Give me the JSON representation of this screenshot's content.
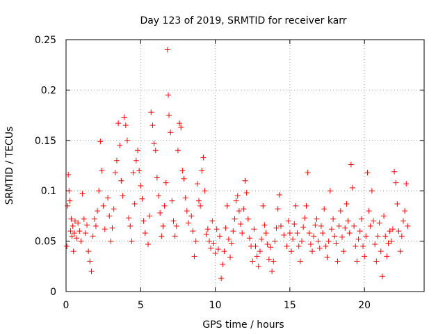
{
  "chart_data": {
    "type": "scatter",
    "title": "Day 123 of 2019, SRMTID for receiver karr",
    "xlabel": "GPS time / hours",
    "ylabel": "SRMTID / TECUs",
    "xlim": [
      0,
      24
    ],
    "ylim": [
      0,
      0.25
    ],
    "xticks": [
      0,
      5,
      10,
      15,
      20
    ],
    "xtick_labels": [
      "0",
      "5",
      "10",
      "15",
      "20"
    ],
    "yticks": [
      0,
      0.05,
      0.1,
      0.15,
      0.2,
      0.25
    ],
    "ytick_labels": [
      "0",
      "0.05",
      "0.1",
      "0.15",
      "0.2",
      "0.25"
    ],
    "grid": true,
    "marker": "plus",
    "marker_color": "#ff0000",
    "series": [
      {
        "name": "SRMTID",
        "points": [
          [
            0.05,
            0.045
          ],
          [
            0.1,
            0.085
          ],
          [
            0.15,
            0.116
          ],
          [
            0.2,
            0.1
          ],
          [
            0.25,
            0.09
          ],
          [
            0.3,
            0.06
          ],
          [
            0.35,
            0.072
          ],
          [
            0.4,
            0.055
          ],
          [
            0.45,
            0.065
          ],
          [
            0.5,
            0.04
          ],
          [
            0.55,
            0.058
          ],
          [
            0.6,
            0.07
          ],
          [
            0.7,
            0.053
          ],
          [
            0.8,
            0.068
          ],
          [
            0.9,
            0.06
          ],
          [
            1.0,
            0.05
          ],
          [
            1.1,
            0.097
          ],
          [
            1.2,
            0.072
          ],
          [
            1.3,
            0.058
          ],
          [
            1.4,
            0.066
          ],
          [
            1.5,
            0.04
          ],
          [
            1.6,
            0.03
          ],
          [
            1.7,
            0.02
          ],
          [
            1.8,
            0.055
          ],
          [
            1.9,
            0.072
          ],
          [
            2.0,
            0.065
          ],
          [
            2.1,
            0.08
          ],
          [
            2.2,
            0.1
          ],
          [
            2.3,
            0.149
          ],
          [
            2.4,
            0.12
          ],
          [
            2.5,
            0.085
          ],
          [
            2.6,
            0.062
          ],
          [
            2.8,
            0.093
          ],
          [
            2.9,
            0.075
          ],
          [
            3.0,
            0.05
          ],
          [
            3.1,
            0.063
          ],
          [
            3.2,
            0.082
          ],
          [
            3.3,
            0.118
          ],
          [
            3.4,
            0.13
          ],
          [
            3.5,
            0.167
          ],
          [
            3.6,
            0.145
          ],
          [
            3.7,
            0.11
          ],
          [
            3.8,
            0.095
          ],
          [
            3.9,
            0.173
          ],
          [
            4.0,
            0.165
          ],
          [
            4.1,
            0.15
          ],
          [
            4.2,
            0.073
          ],
          [
            4.3,
            0.065
          ],
          [
            4.4,
            0.05
          ],
          [
            4.5,
            0.118
          ],
          [
            4.6,
            0.087
          ],
          [
            4.7,
            0.13
          ],
          [
            4.8,
            0.14
          ],
          [
            4.9,
            0.12
          ],
          [
            5.0,
            0.105
          ],
          [
            5.1,
            0.092
          ],
          [
            5.2,
            0.07
          ],
          [
            5.3,
            0.058
          ],
          [
            5.5,
            0.047
          ],
          [
            5.6,
            0.075
          ],
          [
            5.7,
            0.178
          ],
          [
            5.8,
            0.165
          ],
          [
            5.9,
            0.147
          ],
          [
            6.0,
            0.14
          ],
          [
            6.1,
            0.113
          ],
          [
            6.2,
            0.095
          ],
          [
            6.3,
            0.078
          ],
          [
            6.4,
            0.055
          ],
          [
            6.5,
            0.065
          ],
          [
            6.6,
            0.085
          ],
          [
            6.7,
            0.108
          ],
          [
            6.8,
            0.24
          ],
          [
            6.85,
            0.195
          ],
          [
            6.9,
            0.175
          ],
          [
            7.0,
            0.158
          ],
          [
            7.1,
            0.09
          ],
          [
            7.2,
            0.07
          ],
          [
            7.3,
            0.055
          ],
          [
            7.4,
            0.065
          ],
          [
            7.5,
            0.14
          ],
          [
            7.6,
            0.167
          ],
          [
            7.7,
            0.163
          ],
          [
            7.8,
            0.12
          ],
          [
            7.9,
            0.112
          ],
          [
            8.0,
            0.093
          ],
          [
            8.1,
            0.08
          ],
          [
            8.2,
            0.068
          ],
          [
            8.4,
            0.075
          ],
          [
            8.5,
            0.06
          ],
          [
            8.6,
            0.035
          ],
          [
            8.7,
            0.05
          ],
          [
            8.8,
            0.107
          ],
          [
            8.9,
            0.09
          ],
          [
            9.0,
            0.085
          ],
          [
            9.1,
            0.12
          ],
          [
            9.2,
            0.133
          ],
          [
            9.3,
            0.1
          ],
          [
            9.4,
            0.057
          ],
          [
            9.5,
            0.062
          ],
          [
            9.6,
            0.05
          ],
          [
            9.7,
            0.043
          ],
          [
            9.8,
            0.07
          ],
          [
            9.9,
            0.048
          ],
          [
            10.0,
            0.038
          ],
          [
            10.1,
            0.062
          ],
          [
            10.2,
            0.042
          ],
          [
            10.3,
            0.055
          ],
          [
            10.4,
            0.013
          ],
          [
            10.5,
            0.027
          ],
          [
            10.6,
            0.04
          ],
          [
            10.7,
            0.063
          ],
          [
            10.8,
            0.085
          ],
          [
            10.9,
            0.052
          ],
          [
            11.0,
            0.034
          ],
          [
            11.1,
            0.048
          ],
          [
            11.2,
            0.06
          ],
          [
            11.3,
            0.072
          ],
          [
            11.4,
            0.09
          ],
          [
            11.5,
            0.095
          ],
          [
            11.6,
            0.08
          ],
          [
            11.7,
            0.067
          ],
          [
            11.8,
            0.058
          ],
          [
            11.9,
            0.082
          ],
          [
            12.0,
            0.11
          ],
          [
            12.1,
            0.098
          ],
          [
            12.2,
            0.072
          ],
          [
            12.3,
            0.053
          ],
          [
            12.4,
            0.045
          ],
          [
            12.5,
            0.03
          ],
          [
            12.6,
            0.062
          ],
          [
            12.7,
            0.045
          ],
          [
            12.8,
            0.035
          ],
          [
            12.9,
            0.025
          ],
          [
            13.0,
            0.04
          ],
          [
            13.1,
            0.052
          ],
          [
            13.2,
            0.085
          ],
          [
            13.3,
            0.066
          ],
          [
            13.4,
            0.058
          ],
          [
            13.5,
            0.047
          ],
          [
            13.6,
            0.032
          ],
          [
            13.7,
            0.044
          ],
          [
            13.8,
            0.02
          ],
          [
            13.9,
            0.03
          ],
          [
            14.0,
            0.05
          ],
          [
            14.1,
            0.063
          ],
          [
            14.2,
            0.082
          ],
          [
            14.3,
            0.096
          ],
          [
            14.4,
            0.065
          ],
          [
            14.6,
            0.056
          ],
          [
            14.8,
            0.045
          ],
          [
            14.9,
            0.07
          ],
          [
            15.0,
            0.058
          ],
          [
            15.1,
            0.04
          ],
          [
            15.2,
            0.052
          ],
          [
            15.3,
            0.067
          ],
          [
            15.4,
            0.085
          ],
          [
            15.5,
            0.058
          ],
          [
            15.6,
            0.045
          ],
          [
            15.7,
            0.03
          ],
          [
            15.8,
            0.05
          ],
          [
            15.9,
            0.064
          ],
          [
            16.0,
            0.073
          ],
          [
            16.1,
            0.085
          ],
          [
            16.2,
            0.118
          ],
          [
            16.3,
            0.058
          ],
          [
            16.4,
            0.047
          ],
          [
            16.5,
            0.04
          ],
          [
            16.6,
            0.055
          ],
          [
            16.7,
            0.066
          ],
          [
            16.8,
            0.072
          ],
          [
            16.9,
            0.05
          ],
          [
            17.0,
            0.043
          ],
          [
            17.1,
            0.065
          ],
          [
            17.2,
            0.058
          ],
          [
            17.3,
            0.082
          ],
          [
            17.4,
            0.045
          ],
          [
            17.5,
            0.034
          ],
          [
            17.6,
            0.05
          ],
          [
            17.7,
            0.1
          ],
          [
            17.8,
            0.062
          ],
          [
            17.9,
            0.072
          ],
          [
            18.0,
            0.055
          ],
          [
            18.1,
            0.048
          ],
          [
            18.2,
            0.03
          ],
          [
            18.3,
            0.065
          ],
          [
            18.4,
            0.08
          ],
          [
            18.5,
            0.054
          ],
          [
            18.6,
            0.04
          ],
          [
            18.7,
            0.063
          ],
          [
            18.8,
            0.087
          ],
          [
            18.9,
            0.07
          ],
          [
            19.0,
            0.058
          ],
          [
            19.1,
            0.126
          ],
          [
            19.2,
            0.103
          ],
          [
            19.3,
            0.065
          ],
          [
            19.4,
            0.045
          ],
          [
            19.5,
            0.03
          ],
          [
            19.6,
            0.052
          ],
          [
            19.7,
            0.06
          ],
          [
            19.8,
            0.072
          ],
          [
            19.9,
            0.045
          ],
          [
            20.0,
            0.035
          ],
          [
            20.1,
            0.055
          ],
          [
            20.2,
            0.118
          ],
          [
            20.3,
            0.08
          ],
          [
            20.4,
            0.065
          ],
          [
            20.5,
            0.1
          ],
          [
            20.6,
            0.07
          ],
          [
            20.7,
            0.047
          ],
          [
            20.8,
            0.03
          ],
          [
            20.9,
            0.055
          ],
          [
            21.0,
            0.068
          ],
          [
            21.1,
            0.04
          ],
          [
            21.2,
            0.015
          ],
          [
            21.3,
            0.075
          ],
          [
            21.4,
            0.055
          ],
          [
            21.5,
            0.035
          ],
          [
            21.6,
            0.048
          ],
          [
            21.7,
            0.06
          ],
          [
            21.8,
            0.05
          ],
          [
            21.9,
            0.062
          ],
          [
            22.0,
            0.119
          ],
          [
            22.1,
            0.108
          ],
          [
            22.2,
            0.087
          ],
          [
            22.3,
            0.06
          ],
          [
            22.4,
            0.04
          ],
          [
            22.5,
            0.055
          ],
          [
            22.6,
            0.07
          ],
          [
            22.7,
            0.08
          ],
          [
            22.8,
            0.107
          ],
          [
            22.9,
            0.065
          ]
        ]
      }
    ]
  }
}
